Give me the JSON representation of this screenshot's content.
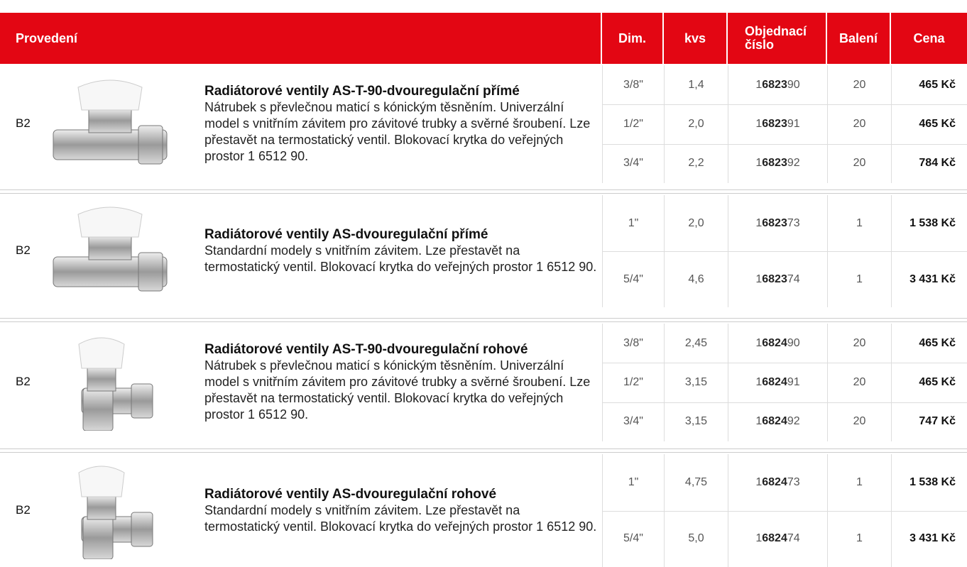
{
  "header": {
    "columns": [
      "Provedení",
      "Dim.",
      "kvs",
      "Objednací číslo",
      "Balení",
      "Cena"
    ]
  },
  "groups": [
    {
      "code": "B2",
      "title": "Radiátorové ventily AS-T-90-dvouregulační přímé",
      "description": "Nátrubek s převlečnou maticí s kónickým těsněním. Univerzální model s vnitřním závitem pro závitové trubky a svěrné šroubení. Lze přestavět na termostatický ventil. Blokovací krytka do veřejných prostor 1 6512 90.",
      "rows": [
        {
          "dim": "3/8\"",
          "kvs": "1,4",
          "order": {
            "prefix": "1",
            "bold": "6823",
            "suffix": "90"
          },
          "pack": "20",
          "price": "465 Kč"
        },
        {
          "dim": "1/2\"",
          "kvs": "2,0",
          "order": {
            "prefix": "1",
            "bold": "6823",
            "suffix": "91"
          },
          "pack": "20",
          "price": "465 Kč"
        },
        {
          "dim": "3/4\"",
          "kvs": "2,2",
          "order": {
            "prefix": "1",
            "bold": "6823",
            "suffix": "92"
          },
          "pack": "20",
          "price": "784 Kč"
        }
      ]
    },
    {
      "code": "B2",
      "title": "Radiátorové ventily AS-dvouregulační přímé",
      "description": "Standardní modely s vnitřním závitem. Lze přestavět na termostatický ventil. Blokovací krytka do veřejných prostor 1 6512 90.",
      "rows": [
        {
          "dim": "1\"",
          "kvs": "2,0",
          "order": {
            "prefix": "1",
            "bold": "6823",
            "suffix": "73"
          },
          "pack": "1",
          "price": "1 538 Kč"
        },
        {
          "dim": "5/4\"",
          "kvs": "4,6",
          "order": {
            "prefix": "1",
            "bold": "6823",
            "suffix": "74"
          },
          "pack": "1",
          "price": "3 431 Kč"
        }
      ]
    },
    {
      "code": "B2",
      "title": "Radiátorové ventily AS-T-90-dvouregulační rohové",
      "description": "Nátrubek s převlečnou maticí s kónickým těsněním. Univerzální model s vnitřním závitem pro závitové trubky a svěrné šroubení. Lze přestavět na termostatický ventil. Blokovací krytka do veřejných prostor 1 6512 90.",
      "rows": [
        {
          "dim": "3/8\"",
          "kvs": "2,45",
          "order": {
            "prefix": "1",
            "bold": "6824",
            "suffix": "90"
          },
          "pack": "20",
          "price": "465 Kč"
        },
        {
          "dim": "1/2\"",
          "kvs": "3,15",
          "order": {
            "prefix": "1",
            "bold": "6824",
            "suffix": "91"
          },
          "pack": "20",
          "price": "465 Kč"
        },
        {
          "dim": "3/4\"",
          "kvs": "3,15",
          "order": {
            "prefix": "1",
            "bold": "6824",
            "suffix": "92"
          },
          "pack": "20",
          "price": "747 Kč"
        }
      ]
    },
    {
      "code": "B2",
      "title": "Radiátorové ventily AS-dvouregulační rohové",
      "description": "Standardní modely s vnitřním závitem. Lze přestavět na termostatický ventil. Blokovací krytka do veřejných prostor 1 6512 90.",
      "rows": [
        {
          "dim": "1\"",
          "kvs": "4,75",
          "order": {
            "prefix": "1",
            "bold": "6824",
            "suffix": "73"
          },
          "pack": "1",
          "price": "1 538 Kč"
        },
        {
          "dim": "5/4\"",
          "kvs": "5,0",
          "order": {
            "prefix": "1",
            "bold": "6824",
            "suffix": "74"
          },
          "pack": "1",
          "price": "3 431 Kč"
        }
      ]
    }
  ]
}
